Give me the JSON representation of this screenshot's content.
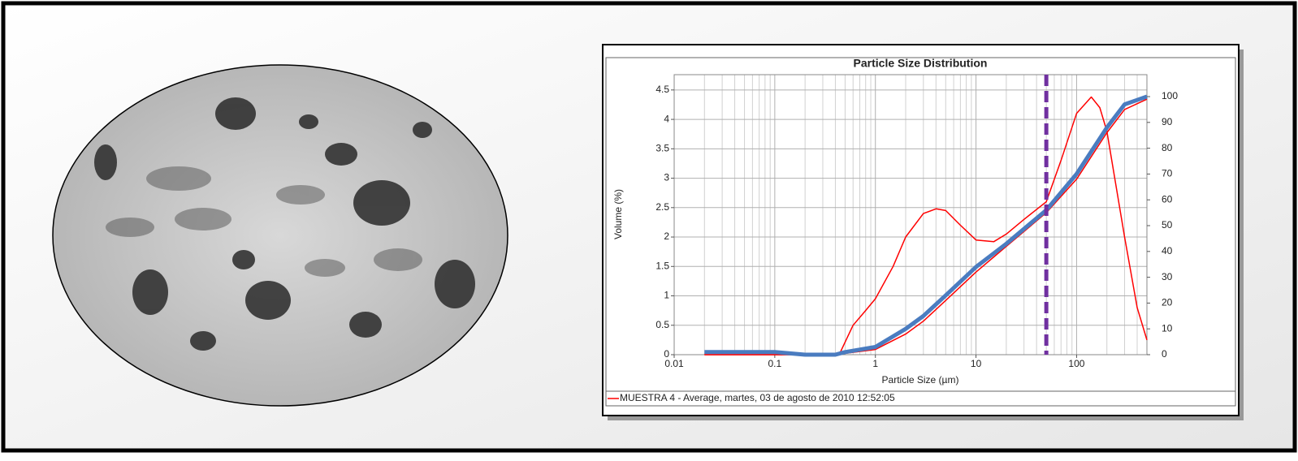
{
  "chart_data": {
    "type": "line",
    "title": "Particle Size Distribution",
    "x_label": "Particle Size (µm)",
    "y_label": "Volume (%)",
    "xscale": "log",
    "xlim": [
      0.01,
      500
    ],
    "xticks": [
      0.01,
      0.1,
      1,
      10,
      100
    ],
    "ylim": [
      0,
      4.76
    ],
    "yticks": [
      0,
      0.5,
      1,
      1.5,
      2,
      2.5,
      3,
      3.5,
      4,
      4.5
    ],
    "y2lim": [
      0,
      108.5
    ],
    "y2ticks": [
      0,
      10,
      20,
      30,
      40,
      50,
      60,
      70,
      80,
      90,
      100
    ],
    "grid": true,
    "legend": "bottom",
    "reference_line_x": 50,
    "reference_line_color": "#7030a0",
    "series": [
      {
        "name": "MUESTRA 4 - Average, martes, 03 de agosto de 2010 12:52:05",
        "color": "#ff0000",
        "width": 1.5,
        "x": [
          0.02,
          0.1,
          0.2,
          0.4,
          0.45,
          0.6,
          0.8,
          1,
          1.5,
          2,
          3,
          4,
          5,
          7,
          10,
          15,
          20,
          30,
          50,
          70,
          100,
          140,
          170,
          200,
          300,
          400,
          500
        ],
        "values": [
          0,
          0,
          0,
          0,
          0.05,
          0.5,
          0.75,
          0.95,
          1.5,
          2.0,
          2.4,
          2.48,
          2.45,
          2.2,
          1.95,
          1.92,
          2.05,
          2.3,
          2.6,
          3.3,
          4.1,
          4.38,
          4.2,
          3.8,
          2.0,
          0.8,
          0.25
        ]
      },
      {
        "color": "#ff0000",
        "width": 1.5,
        "axis": "y2",
        "x": [
          0.02,
          0.1,
          0.2,
          0.4,
          0.5,
          1,
          2,
          3,
          5,
          10,
          20,
          50,
          100,
          200,
          300,
          500
        ],
        "values": [
          0,
          0,
          0,
          0,
          0.5,
          2,
          8,
          13,
          21,
          32,
          42,
          55,
          68,
          86,
          95,
          99
        ]
      },
      {
        "color": "#4a7cc0",
        "width": 5,
        "axis": "y2",
        "x": [
          0.02,
          0.1,
          0.2,
          0.4,
          0.5,
          1,
          2,
          3,
          5,
          10,
          20,
          50,
          100,
          200,
          300,
          500
        ],
        "values": [
          1,
          1,
          0,
          0,
          1,
          3,
          10,
          15,
          23,
          34,
          43,
          56,
          70,
          88,
          97,
          100
        ]
      }
    ]
  }
}
